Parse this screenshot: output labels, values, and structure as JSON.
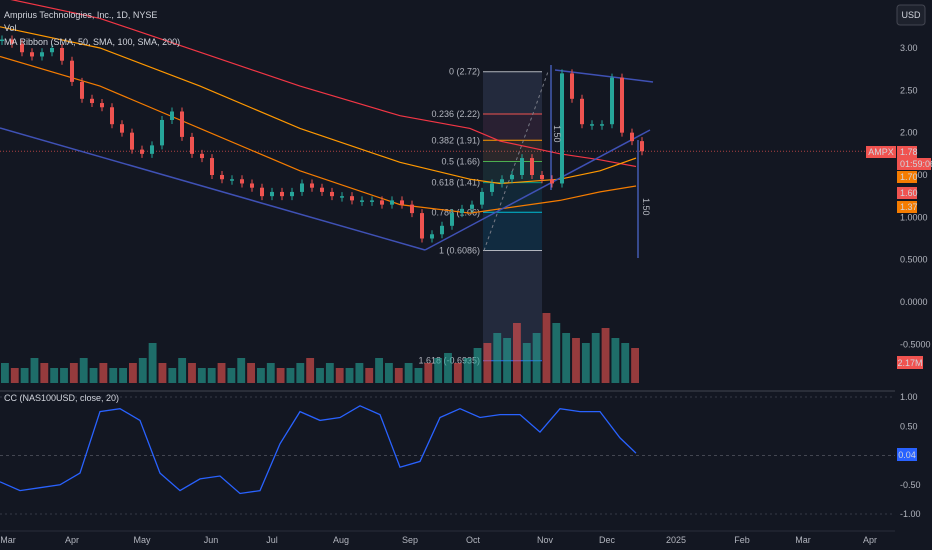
{
  "legend": {
    "symbol": "Amprius Technologies, Inc., 1D, NYSE",
    "line2": "Vol",
    "line3": "MA Ribbon (SMA, 50, SMA, 100, SMA, 200)",
    "indicator": "CC (NAS100USD, close, 20)"
  },
  "currency_button": "USD",
  "ticker_tag": "AMPX",
  "price_tags": [
    {
      "text": "1.78",
      "color": "#f05350"
    },
    {
      "text": "01:59:06",
      "color": "#f05350"
    },
    {
      "text": "1.70",
      "color": "#f57c00"
    },
    {
      "text": "1.60",
      "color": "#f05350"
    },
    {
      "text": "1.37",
      "color": "#f57c00"
    }
  ],
  "volume_tag": "2.17M",
  "cc_tag": "0.04",
  "fib": [
    {
      "level": "0",
      "price": 2.72,
      "label": "0 (2.72)",
      "color": "#b2b5be"
    },
    {
      "level": "0.236",
      "price": 2.22,
      "label": "0.236 (2.22)",
      "color": "#f05350"
    },
    {
      "level": "0.382",
      "price": 1.91,
      "label": "0.382 (1.91)",
      "color": "#ff9800"
    },
    {
      "level": "0.5",
      "price": 1.66,
      "label": "0.5 (1.66)",
      "color": "#4caf50"
    },
    {
      "level": "0.618",
      "price": 1.41,
      "label": "0.618 (1.41)",
      "color": "#089981"
    },
    {
      "level": "0.786",
      "price": 1.06,
      "label": "0.786 (1.06)",
      "color": "#00bcd4"
    },
    {
      "level": "1",
      "price": 0.6086,
      "label": "1 (0.6086)",
      "color": "#b2b5be"
    },
    {
      "level": "1.618",
      "price": -0.6935,
      "label": "1.618 (-0.6935)",
      "color": "#2962ff"
    }
  ],
  "annotations": [
    "1.50",
    "1.50"
  ],
  "chart_data": {
    "type": "line",
    "price_axis_ticks": [
      "3.00",
      "2.50",
      "2.00",
      "1.5000",
      "1.0000",
      "0.5000",
      "0.0000",
      "-0.5000"
    ],
    "cc_axis_ticks": [
      "1.00",
      "0.50",
      "-0.50",
      "-1.00"
    ],
    "x_ticks": [
      "Mar",
      "Apr",
      "May",
      "Jun",
      "Jul",
      "Aug",
      "Sep",
      "Oct",
      "Nov",
      "Dec",
      "2025",
      "Feb",
      "Mar",
      "Apr"
    ],
    "price_series": {
      "name": "AMPX",
      "x": [
        0,
        10,
        20,
        30,
        40,
        50,
        60,
        70,
        80,
        90,
        100,
        110,
        120,
        130,
        140,
        150,
        160,
        170,
        180,
        190,
        200,
        210,
        220,
        230,
        240,
        250,
        260,
        270,
        280,
        290,
        300,
        310,
        320,
        330,
        340,
        350,
        360,
        370,
        380,
        390,
        400,
        410,
        420,
        430,
        440,
        450,
        460,
        470,
        480,
        490,
        500,
        510,
        520,
        530,
        540,
        550,
        560,
        570,
        580,
        590,
        600,
        610,
        620,
        630,
        640
      ],
      "values": [
        3.1,
        3.05,
        2.95,
        2.9,
        2.95,
        3.0,
        2.85,
        2.6,
        2.4,
        2.35,
        2.3,
        2.1,
        2.0,
        1.8,
        1.75,
        1.85,
        2.15,
        2.25,
        1.95,
        1.75,
        1.7,
        1.5,
        1.45,
        1.45,
        1.4,
        1.35,
        1.25,
        1.3,
        1.25,
        1.3,
        1.4,
        1.35,
        1.3,
        1.25,
        1.25,
        1.2,
        1.2,
        1.2,
        1.15,
        1.2,
        1.15,
        1.05,
        0.75,
        0.8,
        0.9,
        1.05,
        1.1,
        1.15,
        1.3,
        1.4,
        1.45,
        1.5,
        1.7,
        1.5,
        1.45,
        1.4,
        2.7,
        2.4,
        2.1,
        2.1,
        2.1,
        2.65,
        2.0,
        1.9,
        1.78
      ]
    },
    "ma_series": [
      {
        "x": [
          0,
          100,
          200,
          300,
          400,
          470,
          500,
          560,
          600,
          636
        ],
        "values": [
          3.6,
          3.35,
          2.95,
          2.55,
          2.2,
          2.05,
          1.9,
          1.75,
          1.68,
          1.6
        ],
        "color": "#f23645"
      },
      {
        "x": [
          0,
          100,
          200,
          300,
          400,
          470,
          500,
          560,
          600,
          636
        ],
        "values": [
          3.25,
          3.0,
          2.55,
          2.05,
          1.65,
          1.45,
          1.4,
          1.45,
          1.55,
          1.7
        ],
        "color": "#ff9800"
      },
      {
        "x": [
          0,
          100,
          200,
          300,
          400,
          470,
          500,
          560,
          600,
          636
        ],
        "values": [
          2.9,
          2.55,
          2.05,
          1.55,
          1.15,
          1.05,
          1.1,
          1.2,
          1.3,
          1.37
        ],
        "color": "#f57c00"
      }
    ],
    "volume_values": [
      4,
      3,
      3,
      5,
      4,
      3,
      3,
      4,
      5,
      3,
      4,
      3,
      3,
      4,
      5,
      8,
      4,
      3,
      5,
      4,
      3,
      3,
      4,
      3,
      5,
      4,
      3,
      4,
      3,
      3,
      4,
      5,
      3,
      4,
      3,
      3,
      4,
      3,
      5,
      4,
      3,
      4,
      3,
      4,
      5,
      6,
      4,
      5,
      7,
      8,
      10,
      9,
      12,
      8,
      10,
      14,
      12,
      10,
      9,
      8,
      10,
      11,
      9,
      8,
      7
    ],
    "cc_series": {
      "x": [
        0,
        20,
        40,
        60,
        80,
        100,
        120,
        140,
        160,
        180,
        200,
        220,
        240,
        260,
        280,
        300,
        320,
        340,
        360,
        380,
        400,
        420,
        440,
        460,
        480,
        500,
        520,
        540,
        560,
        580,
        600,
        620,
        636
      ],
      "values": [
        -0.45,
        -0.6,
        -0.55,
        -0.5,
        -0.3,
        0.75,
        0.8,
        0.6,
        -0.3,
        -0.6,
        -0.4,
        -0.35,
        -0.65,
        -0.6,
        0.2,
        0.75,
        0.6,
        0.65,
        0.85,
        0.7,
        -0.2,
        -0.1,
        0.65,
        0.8,
        0.65,
        0.7,
        0.7,
        0.4,
        0.8,
        0.75,
        0.75,
        0.3,
        0.04
      ]
    }
  }
}
